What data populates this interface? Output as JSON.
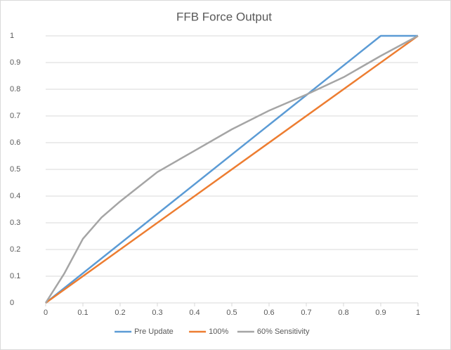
{
  "chart_data": {
    "type": "line",
    "title": "FFB Force Output",
    "series": [
      {
        "name": "Pre Update",
        "color": "#5b9bd5",
        "x": [
          0,
          0.9,
          1
        ],
        "values": [
          0,
          1,
          1
        ]
      },
      {
        "name": "100%",
        "color": "#ed7d31",
        "x": [
          0,
          1
        ],
        "values": [
          0,
          1
        ]
      },
      {
        "name": "60% Sensitivity",
        "color": "#a5a5a5",
        "x": [
          0,
          0.05,
          0.1,
          0.15,
          0.2,
          0.3,
          0.4,
          0.5,
          0.6,
          0.7,
          0.8,
          0.9,
          1
        ],
        "values": [
          0,
          0.11,
          0.24,
          0.32,
          0.38,
          0.49,
          0.57,
          0.65,
          0.72,
          0.78,
          0.845,
          0.925,
          1
        ]
      }
    ],
    "xlim": [
      0,
      1
    ],
    "xticks": [
      0,
      0.1,
      0.2,
      0.3,
      0.4,
      0.5,
      0.6,
      0.7,
      0.8,
      0.9,
      1
    ],
    "ylim": [
      0,
      1
    ],
    "yticks": [
      0,
      0.1,
      0.2,
      0.3,
      0.4,
      0.5,
      0.6,
      0.7,
      0.8,
      0.9,
      1
    ],
    "grid": true,
    "legend": "bottom"
  }
}
